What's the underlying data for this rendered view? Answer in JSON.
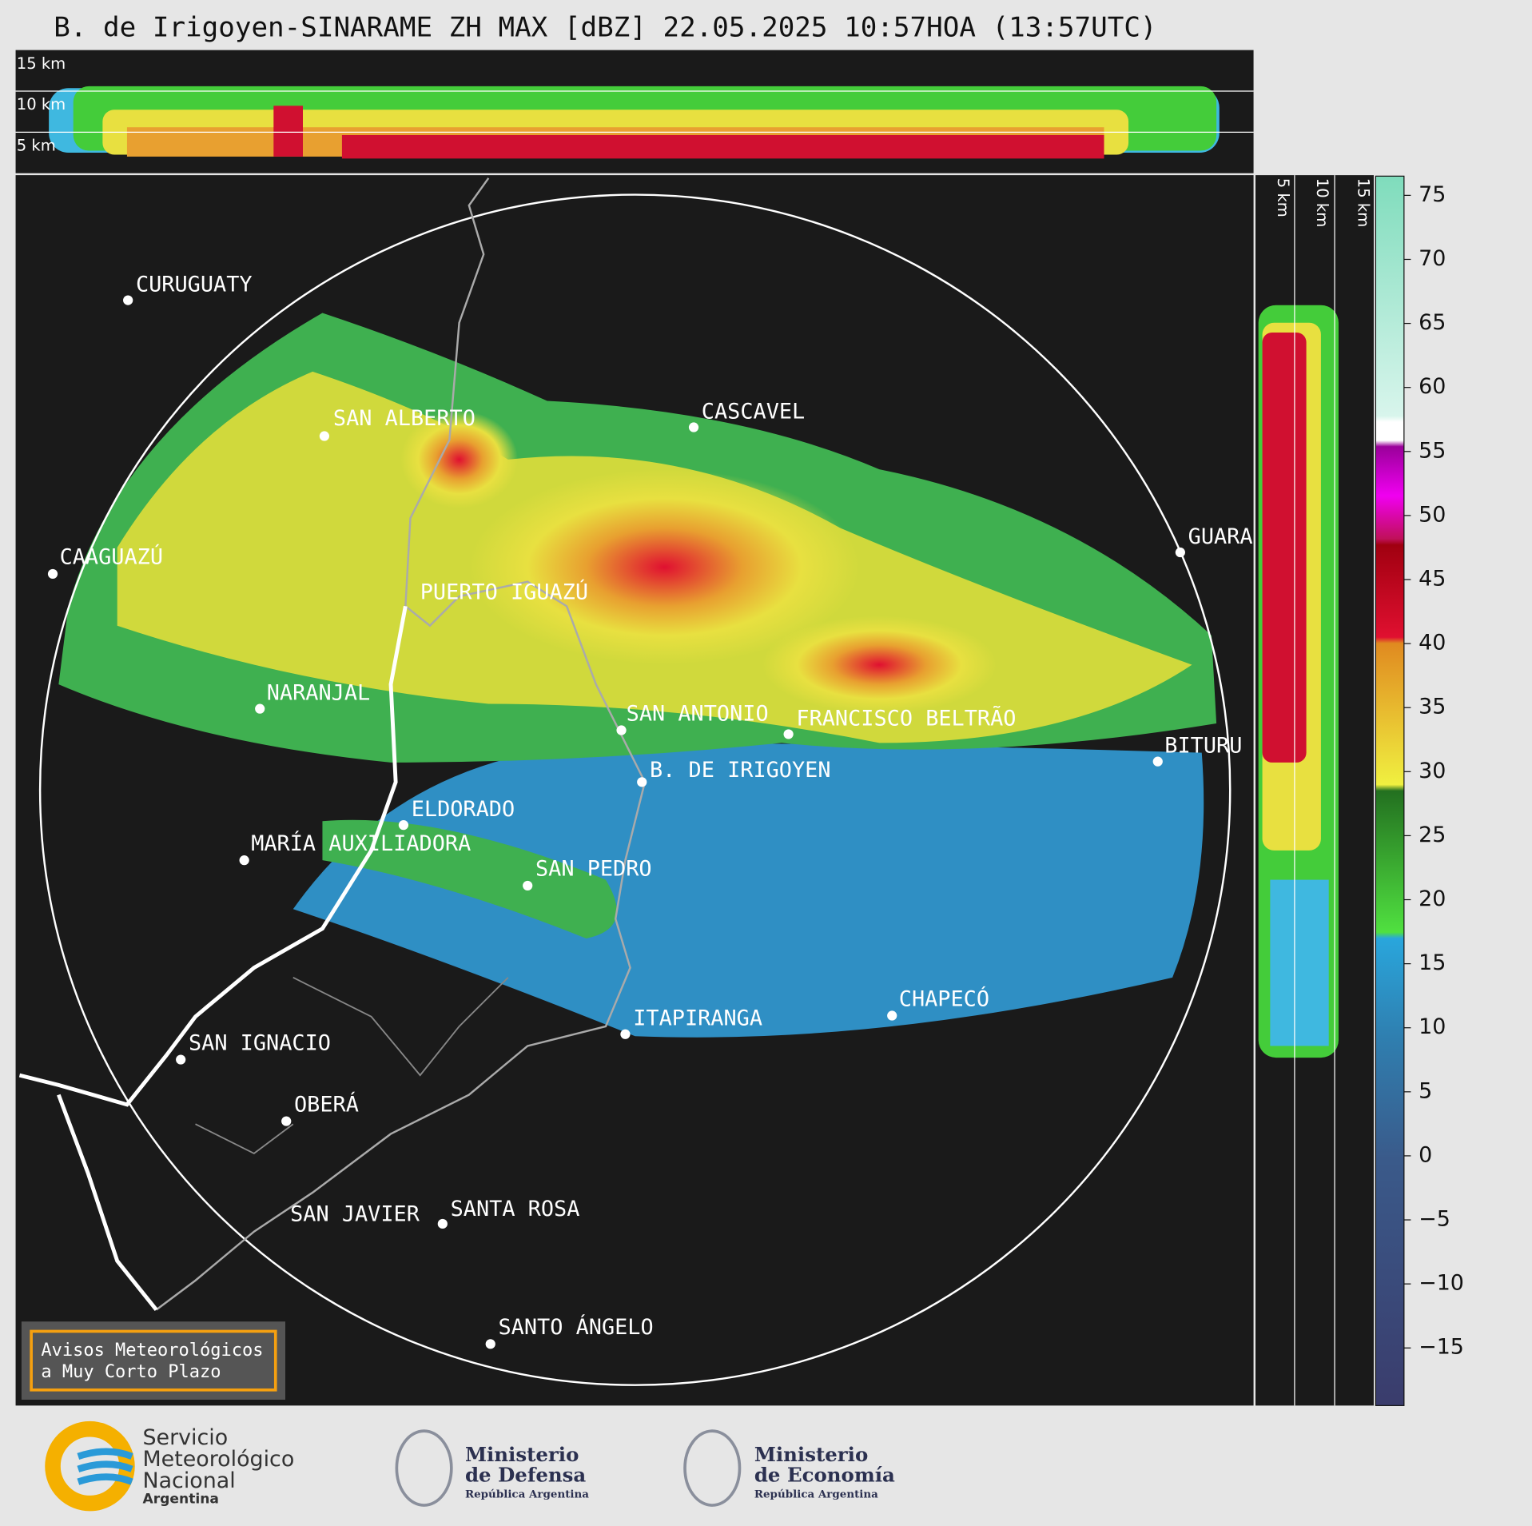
{
  "title": "B. de Irigoyen-SINARAME ZH MAX [dBZ] 22.05.2025 10:57HOA (13:57UTC)",
  "top_panel_labels": [
    "15 km",
    "10 km",
    "5 km"
  ],
  "side_panel_labels": [
    "5 km",
    "10 km",
    "15 km"
  ],
  "cities": [
    "CURUGUATY",
    "SAN ALBERTO",
    "CASCAVEL",
    "GUARA",
    "CAAGUAZÚ",
    "PUERTO IGUAZÚ",
    "NARANJAL",
    "SAN ANTONIO",
    "FRANCISCO BELTRÃO",
    "BITURU",
    "B. DE IRIGOYEN",
    "ELDORADO",
    "MARÍA AUXILIADORA",
    "SAN PEDRO",
    "ITAPIRANGA",
    "CHAPECÓ",
    "SAN IGNACIO",
    "OBERÁ",
    "SAN JAVIER",
    "SANTA ROSA",
    "SANTO ÁNGELO"
  ],
  "colorbar": {
    "range": [
      -19.5,
      76.5
    ],
    "ticks": [
      75,
      70,
      65,
      60,
      55,
      50,
      45,
      40,
      35,
      30,
      25,
      20,
      15,
      10,
      5,
      0,
      {
        "value": -5,
        "label": "−5"
      },
      {
        "value": -10,
        "label": "−10"
      },
      {
        "value": -15,
        "label": "−15"
      }
    ]
  },
  "notice": [
    "Avisos Meteorológicos",
    "a Muy Corto Plazo"
  ],
  "logos": {
    "smn": [
      "Servicio",
      "Meteorológico",
      "Nacional",
      "Argentina"
    ],
    "defensa": [
      "Ministerio",
      "de Defensa",
      "República Argentina"
    ],
    "economia": [
      "Ministerio",
      "de Economía",
      "República Argentina"
    ]
  }
}
